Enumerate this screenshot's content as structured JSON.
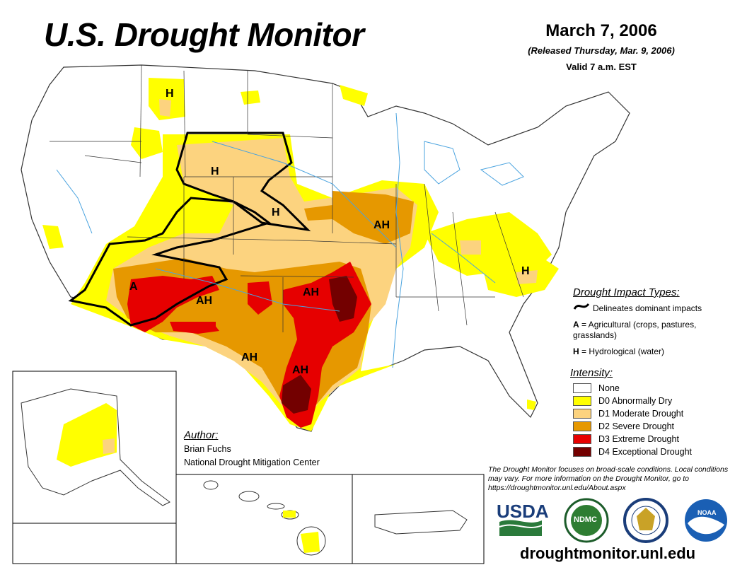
{
  "header": {
    "title": "U.S. Drought Monitor",
    "date": "March 7, 2006",
    "released": "(Released Thursday, Mar. 9, 2006)",
    "valid": "Valid 7 a.m. EST"
  },
  "map_labels": {
    "h_montana": "H",
    "h_wyoming": "H",
    "h_nebraska": "H",
    "ah_iowa": "AH",
    "a_arizona": "A",
    "ah_newmexico": "AH",
    "ah_oklahoma": "AH",
    "ah_westtexas": "AH",
    "ah_southtexas": "AH",
    "h_carolina": "H"
  },
  "impact_types": {
    "title": "Drought Impact Types:",
    "delineates": "Delineates dominant impacts",
    "a_key": "A",
    "a_desc": " = Agricultural (crops, pastures, grasslands)",
    "h_key": "H",
    "h_desc": " = Hydrological (water)"
  },
  "intensity": {
    "title": "Intensity:",
    "levels": [
      {
        "label": "None",
        "color": "#ffffff"
      },
      {
        "label": "D0 Abnormally Dry",
        "color": "#ffff00"
      },
      {
        "label": "D1 Moderate Drought",
        "color": "#fcd37f"
      },
      {
        "label": "D2 Severe Drought",
        "color": "#e69800"
      },
      {
        "label": "D3 Extreme Drought",
        "color": "#e60000"
      },
      {
        "label": "D4 Exceptional Drought",
        "color": "#730000"
      }
    ]
  },
  "author": {
    "title": "Author:",
    "name": "Brian Fuchs",
    "org": "National Drought Mitigation Center"
  },
  "note": "The Drought Monitor focuses on broad-scale conditions. Local conditions may vary. For more information on the Drought Monitor, go to https://droughtmonitor.unl.edu/About.aspx",
  "logos": {
    "usda": "USDA",
    "ndmc": "NDMC",
    "noaa": "NOAA"
  },
  "url": "droughtmonitor.unl.edu",
  "colors": {
    "d0": "#ffff00",
    "d1": "#fcd37f",
    "d2": "#e69800",
    "d3": "#e60000",
    "d4": "#730000",
    "water": "#4aa3df"
  }
}
